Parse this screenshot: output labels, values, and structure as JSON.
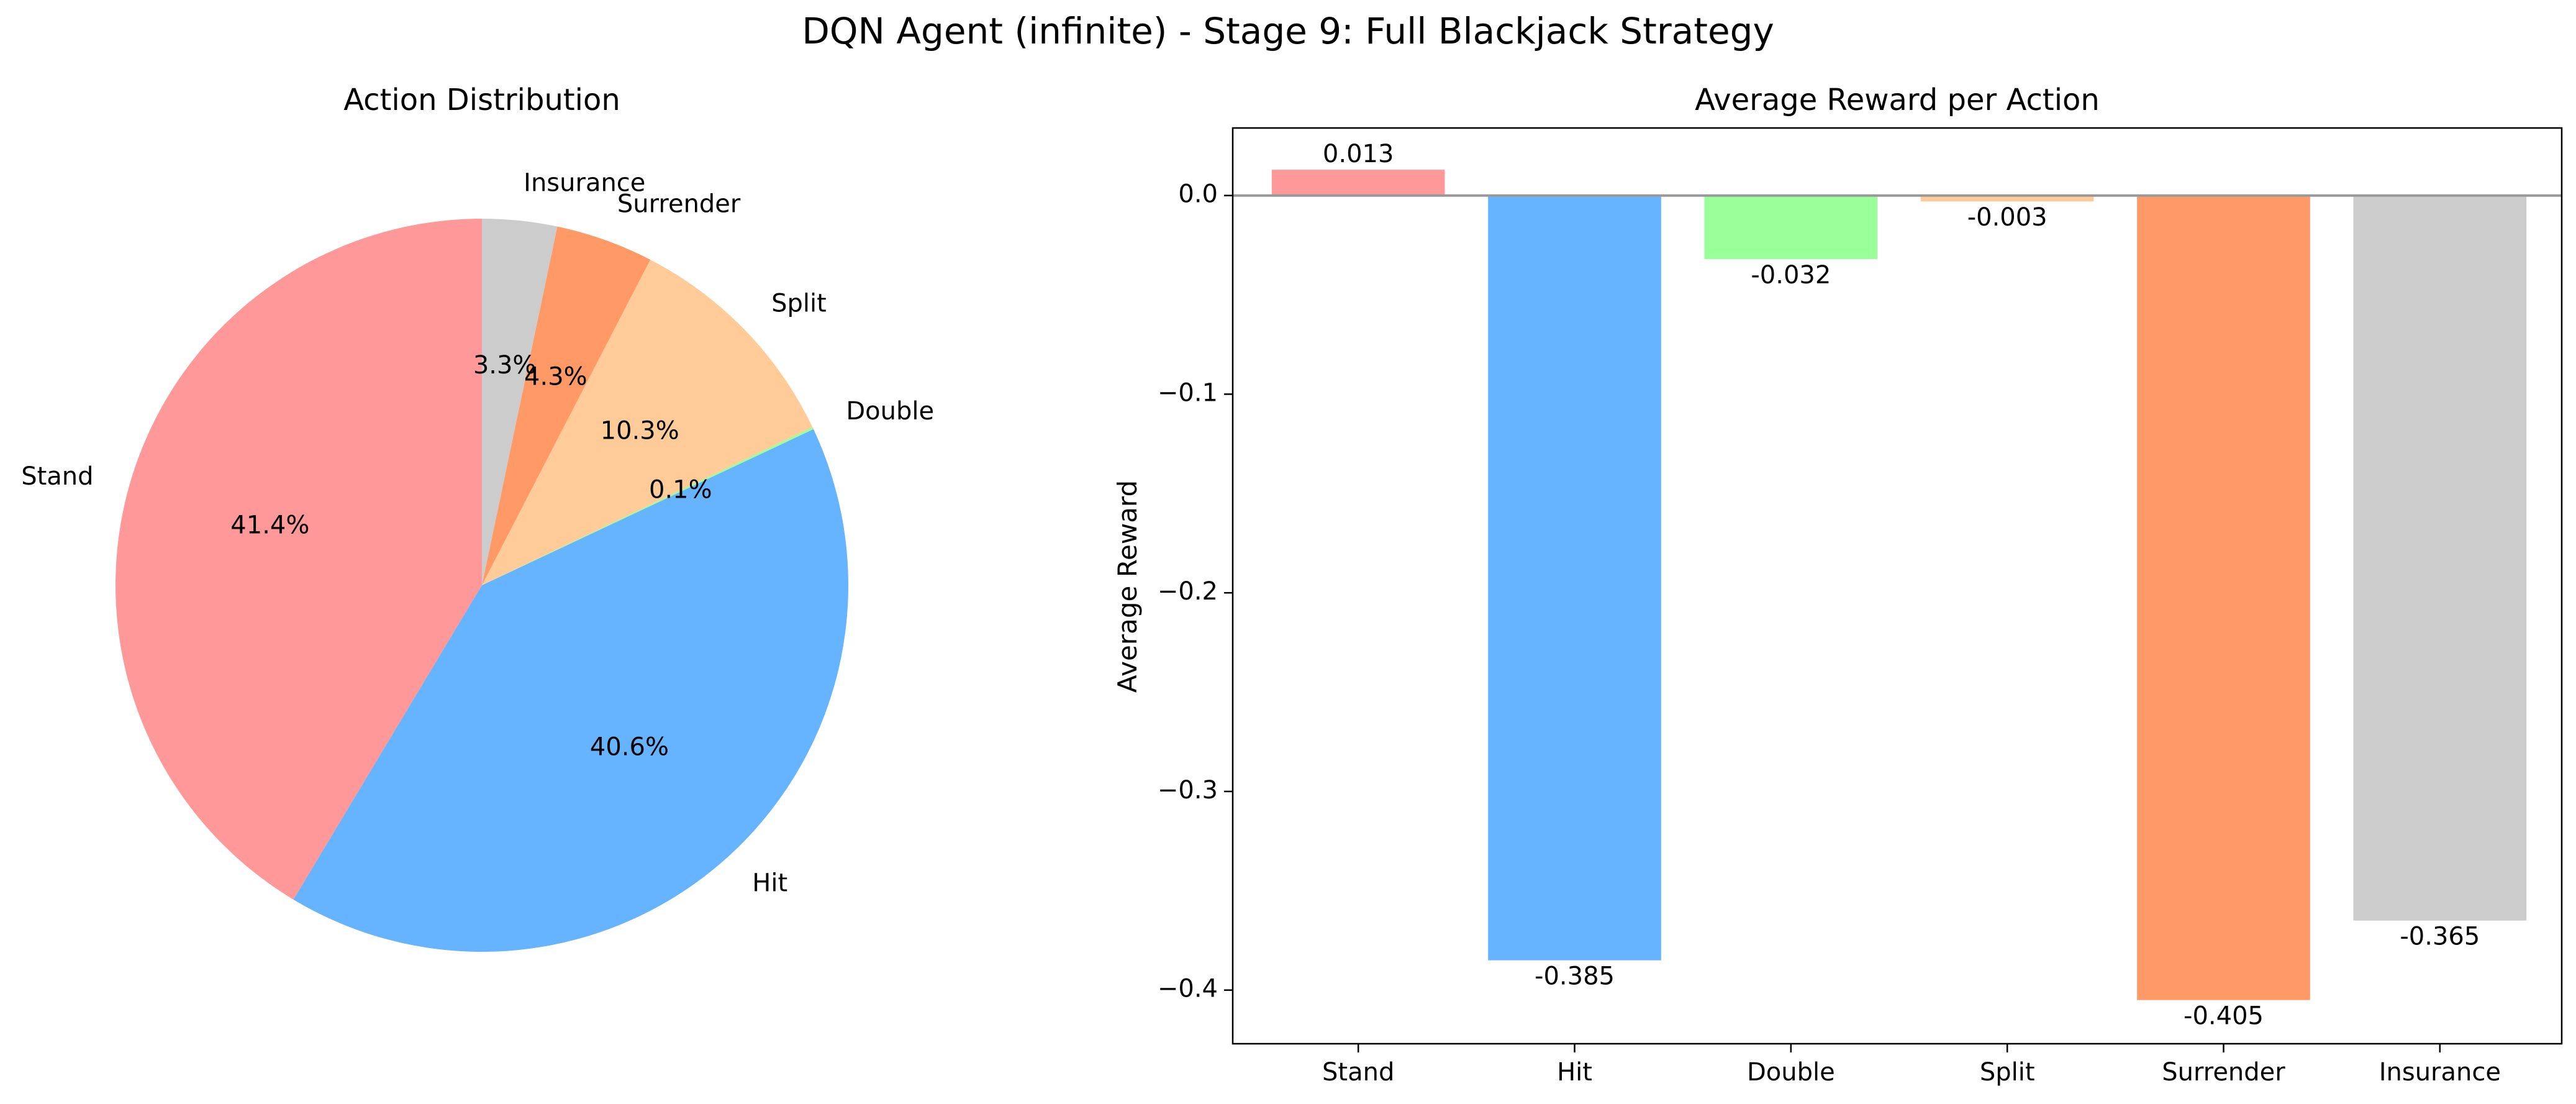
{
  "figure": {
    "suptitle": "DQN Agent (infinite) - Stage 9: Full Blackjack Strategy"
  },
  "chart_data": [
    {
      "type": "pie",
      "title": "Action Distribution",
      "labels": [
        "Stand",
        "Hit",
        "Double",
        "Split",
        "Surrender",
        "Insurance"
      ],
      "values": [
        41.4,
        40.6,
        0.1,
        10.3,
        4.3,
        3.3
      ],
      "value_labels": [
        "41.4%",
        "40.6%",
        "0.1%",
        "10.3%",
        "4.3%",
        "3.3%"
      ],
      "colors": [
        "#ff9999",
        "#66b3ff",
        "#99ff99",
        "#ffcc99",
        "#ff9966",
        "#cccccc"
      ],
      "start_angle": 90,
      "direction": "counterclockwise"
    },
    {
      "type": "bar",
      "title": "Average Reward per Action",
      "xlabel": "",
      "ylabel": "Average Reward",
      "categories": [
        "Stand",
        "Hit",
        "Double",
        "Split",
        "Surrender",
        "Insurance"
      ],
      "values": [
        0.013,
        -0.385,
        -0.032,
        -0.003,
        -0.405,
        -0.365
      ],
      "value_labels": [
        "0.013",
        "-0.385",
        "-0.032",
        "-0.003",
        "-0.405",
        "-0.365"
      ],
      "colors": [
        "#ff9999",
        "#66b3ff",
        "#99ff99",
        "#ffcc99",
        "#ff9966",
        "#cccccc"
      ],
      "ylim": [
        -0.427,
        0.034
      ],
      "yticks": [
        0.0,
        -0.1,
        -0.2,
        -0.3,
        -0.4
      ],
      "ytick_labels": [
        "0.0",
        "−0.1",
        "−0.2",
        "−0.3",
        "−0.4"
      ],
      "zero_line": true,
      "grid": false
    }
  ]
}
